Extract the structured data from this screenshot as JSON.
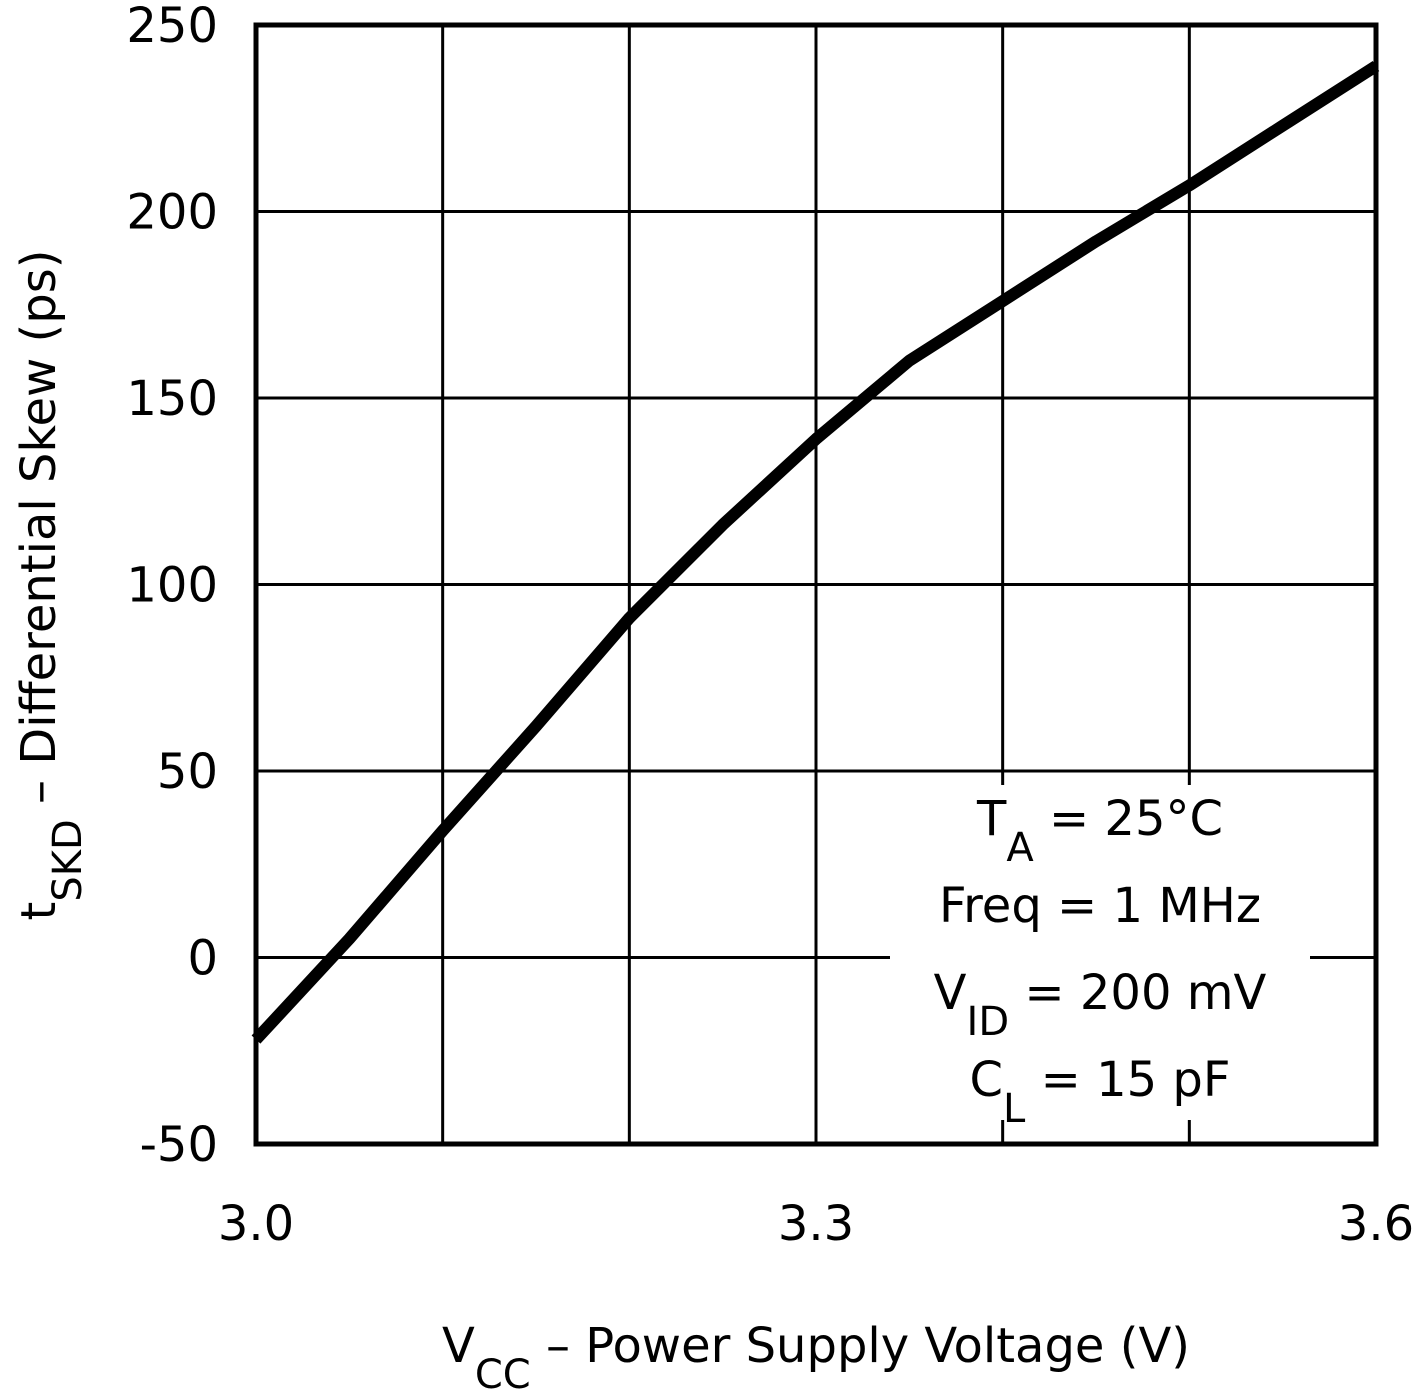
{
  "chart_data": {
    "type": "line",
    "x_label": {
      "text": "V",
      "sub": "CC",
      "rest": " – Power Supply Voltage (V)"
    },
    "y_label": {
      "text": "t",
      "sub": "SKD",
      "rest": " – Differential Skew (ps)"
    },
    "annotation": [
      {
        "text": "T",
        "sub": "A",
        "rest": " = 25°C"
      },
      {
        "text": "Freq = 1 MHz"
      },
      {
        "text": "V",
        "sub": "ID",
        "rest": " = 200 mV"
      },
      {
        "text": "C",
        "sub": "L",
        "rest": " = 15 pF"
      }
    ],
    "x": [
      3.0,
      3.05,
      3.1,
      3.15,
      3.2,
      3.25,
      3.3,
      3.35,
      3.4,
      3.45,
      3.5,
      3.55,
      3.6
    ],
    "series": [
      {
        "color": "#000000",
        "values": [
          -22,
          5,
          34,
          62,
          91,
          116,
          139,
          160,
          176,
          192,
          207,
          223,
          239
        ]
      }
    ],
    "xlim": [
      3.0,
      3.6
    ],
    "xticks": [
      {
        "value": 3.0,
        "label": "3.0"
      },
      3.3,
      3.6
    ],
    "x_minor_ticks": [
      3.1,
      3.2,
      3.4,
      3.5
    ],
    "ylim": [
      -50,
      250
    ],
    "yticks": [
      -50,
      0,
      50,
      100,
      150,
      200,
      250
    ],
    "grid": true
  }
}
